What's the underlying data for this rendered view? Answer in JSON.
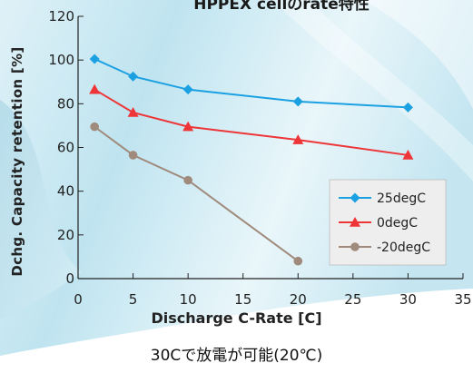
{
  "page": {
    "caption": "30Cで放電が可能(20℃)"
  },
  "chart_data": {
    "type": "line",
    "title": "HPPEX cellのrate特性",
    "xlabel": "Discharge C-Rate [C]",
    "ylabel": "Dchg. Capacity retention [%]",
    "xlim": [
      0,
      35
    ],
    "ylim": [
      0,
      120
    ],
    "x_ticks": [
      "0",
      "5",
      "10",
      "15",
      "20",
      "25",
      "30",
      "35"
    ],
    "y_ticks": [
      "0",
      "20",
      "40",
      "60",
      "80",
      "100",
      "120"
    ],
    "grid": false,
    "legend_position": "bottom-right",
    "series": [
      {
        "name": "25degC",
        "color": "#1ba1e2",
        "marker": "diamond",
        "x": [
          1.5,
          5,
          10,
          20,
          30
        ],
        "values": [
          100.5,
          92.5,
          86.5,
          81,
          78.3
        ]
      },
      {
        "name": "0degC",
        "color": "#ee3538",
        "marker": "triangle",
        "x": [
          1.5,
          5,
          10,
          20,
          30
        ],
        "values": [
          86.5,
          76,
          69.5,
          63.5,
          56.5
        ]
      },
      {
        "name": "-20degC",
        "color": "#a08a7c",
        "marker": "circle",
        "x": [
          1.5,
          5,
          10,
          20
        ],
        "values": [
          69.5,
          56.5,
          45,
          8
        ]
      }
    ]
  }
}
